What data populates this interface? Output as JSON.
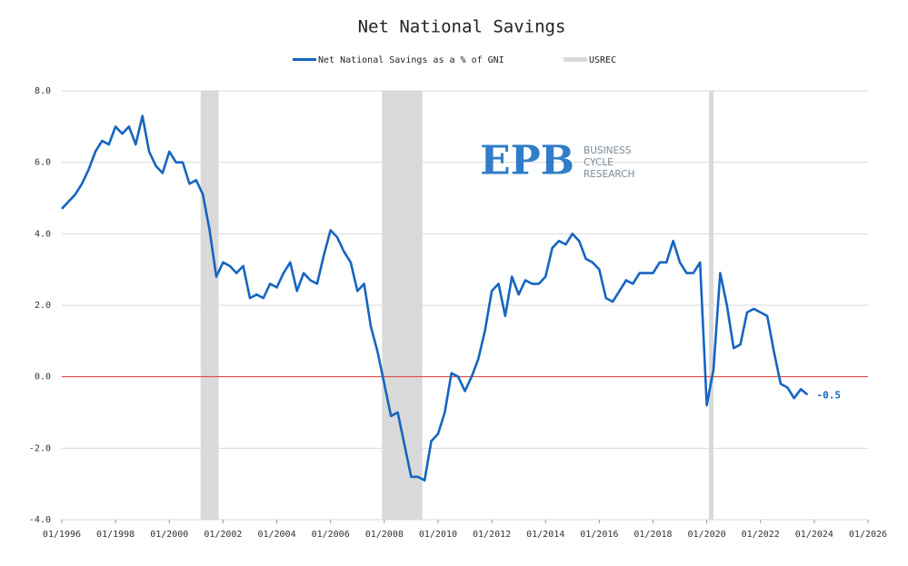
{
  "chart_data": {
    "type": "line",
    "title": "Net National Savings",
    "x": [
      "1996-01",
      "1996-04",
      "1996-07",
      "1996-10",
      "1997-01",
      "1997-04",
      "1997-07",
      "1997-10",
      "1998-01",
      "1998-04",
      "1998-07",
      "1998-10",
      "1999-01",
      "1999-04",
      "1999-07",
      "1999-10",
      "2000-01",
      "2000-04",
      "2000-07",
      "2000-10",
      "2001-01",
      "2001-04",
      "2001-07",
      "2001-10",
      "2002-01",
      "2002-04",
      "2002-07",
      "2002-10",
      "2003-01",
      "2003-04",
      "2003-07",
      "2003-10",
      "2004-01",
      "2004-04",
      "2004-07",
      "2004-10",
      "2005-01",
      "2005-04",
      "2005-07",
      "2005-10",
      "2006-01",
      "2006-04",
      "2006-07",
      "2006-10",
      "2007-01",
      "2007-04",
      "2007-07",
      "2007-10",
      "2008-01",
      "2008-04",
      "2008-07",
      "2008-10",
      "2009-01",
      "2009-04",
      "2009-07",
      "2009-10",
      "2010-01",
      "2010-04",
      "2010-07",
      "2010-10",
      "2011-01",
      "2011-04",
      "2011-07",
      "2011-10",
      "2012-01",
      "2012-04",
      "2012-07",
      "2012-10",
      "2013-01",
      "2013-04",
      "2013-07",
      "2013-10",
      "2014-01",
      "2014-04",
      "2014-07",
      "2014-10",
      "2015-01",
      "2015-04",
      "2015-07",
      "2015-10",
      "2016-01",
      "2016-04",
      "2016-07",
      "2016-10",
      "2017-01",
      "2017-04",
      "2017-07",
      "2017-10",
      "2018-01",
      "2018-04",
      "2018-07",
      "2018-10",
      "2019-01",
      "2019-04",
      "2019-07",
      "2019-10",
      "2020-01",
      "2020-04",
      "2020-07",
      "2020-10",
      "2021-01",
      "2021-04",
      "2021-07",
      "2021-10",
      "2022-01",
      "2022-04",
      "2022-07",
      "2022-10",
      "2023-01",
      "2023-04",
      "2023-07",
      "2023-10"
    ],
    "series": [
      {
        "name": "Net National Savings as a % of GNI",
        "color": "#1565c0",
        "values": [
          4.7,
          4.9,
          5.1,
          5.4,
          5.8,
          6.3,
          6.6,
          6.5,
          7.0,
          6.8,
          7.0,
          6.5,
          7.3,
          6.3,
          5.9,
          5.7,
          6.3,
          6.0,
          6.0,
          5.4,
          5.5,
          5.1,
          4.1,
          2.8,
          3.2,
          3.1,
          2.9,
          3.1,
          2.2,
          2.3,
          2.2,
          2.6,
          2.5,
          2.9,
          3.2,
          2.4,
          2.9,
          2.7,
          2.6,
          3.4,
          4.1,
          3.9,
          3.5,
          3.2,
          2.4,
          2.6,
          1.4,
          0.7,
          -0.2,
          -1.1,
          -1.0,
          -1.9,
          -2.8,
          -2.8,
          -2.9,
          -1.8,
          -1.6,
          -1.0,
          0.1,
          0.0,
          -0.4,
          0.0,
          0.5,
          1.3,
          2.4,
          2.6,
          1.7,
          2.8,
          2.3,
          2.7,
          2.6,
          2.6,
          2.8,
          3.6,
          3.8,
          3.7,
          4.0,
          3.8,
          3.3,
          3.2,
          3.0,
          2.2,
          2.1,
          2.4,
          2.7,
          2.6,
          2.9,
          2.9,
          2.9,
          3.2,
          3.2,
          3.8,
          3.2,
          2.9,
          2.9,
          3.2,
          -0.8,
          0.2,
          2.9,
          2.0,
          0.8,
          0.9,
          1.8,
          1.9,
          1.8,
          1.7,
          0.7,
          -0.2,
          -0.3,
          -0.6,
          -0.35,
          -0.5
        ]
      },
      {
        "name": "USREC",
        "color": "#d9d9d9",
        "periods": [
          {
            "start": "2001-03",
            "end": "2001-11"
          },
          {
            "start": "2007-12",
            "end": "2009-06"
          },
          {
            "start": "2020-02",
            "end": "2020-04"
          }
        ]
      }
    ],
    "xlim": [
      "1996-01",
      "2026-01"
    ],
    "xticks": [
      {
        "value": "1996-01",
        "label": "01/1996"
      },
      {
        "value": "1998-01",
        "label": "01/1998"
      },
      {
        "value": "2000-01",
        "label": "01/2000"
      },
      {
        "value": "2002-01",
        "label": "01/2002"
      },
      {
        "value": "2004-01",
        "label": "01/2004"
      },
      {
        "value": "2006-01",
        "label": "01/2006"
      },
      {
        "value": "2008-01",
        "label": "01/2008"
      },
      {
        "value": "2010-01",
        "label": "01/2010"
      },
      {
        "value": "2012-01",
        "label": "01/2012"
      },
      {
        "value": "2014-01",
        "label": "01/2014"
      },
      {
        "value": "2016-01",
        "label": "01/2016"
      },
      {
        "value": "2018-01",
        "label": "01/2018"
      },
      {
        "value": "2020-01",
        "label": "01/2020"
      },
      {
        "value": "2022-01",
        "label": "01/2022"
      },
      {
        "value": "2024-01",
        "label": "01/2024"
      },
      {
        "value": "2026-01",
        "label": "01/2026"
      }
    ],
    "ylim": [
      -4,
      8
    ],
    "yticks": [
      {
        "value": -4,
        "label": "-4.0"
      },
      {
        "value": -2,
        "label": "-2.0"
      },
      {
        "value": 0,
        "label": "0.0"
      },
      {
        "value": 2,
        "label": "2.0"
      },
      {
        "value": 4,
        "label": "4.0"
      },
      {
        "value": 6,
        "label": "6.0"
      },
      {
        "value": 8,
        "label": "8.0"
      }
    ],
    "grid": true,
    "zero_line_color": "#e53935",
    "legend": "top",
    "watermark": {
      "logo": "EPB",
      "lines": [
        "BUSINESS",
        "CYCLE",
        "RESEARCH"
      ]
    }
  }
}
